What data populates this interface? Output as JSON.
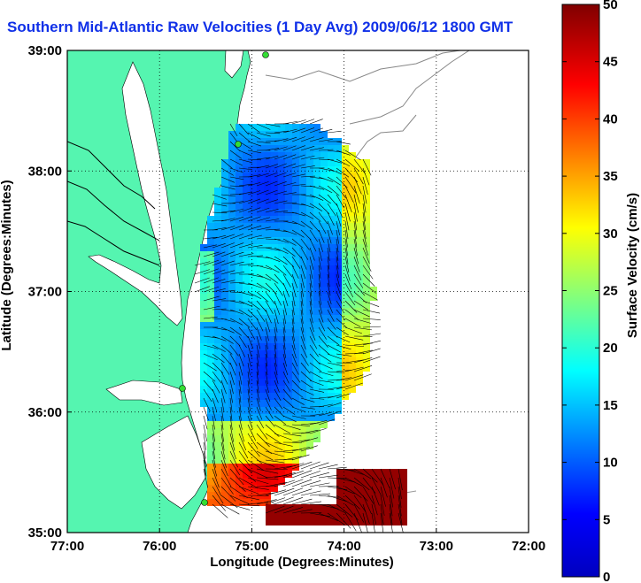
{
  "title": "Southern Mid-Atlantic Raw Velocities (1 Day Avg) 2009/06/12 1800 GMT",
  "chart_data": {
    "type": "heatmap",
    "title": "Southern Mid-Atlantic Raw Velocities (1 Day Avg) 2009/06/12 1800 GMT",
    "xlabel": "Longitude (Degrees:Minutes)",
    "ylabel": "Latitude (Degrees:Minutes)",
    "xlim": [
      -77,
      -72
    ],
    "ylim": [
      35,
      39
    ],
    "x_ticks": [
      {
        "value": -77,
        "label": "77:00"
      },
      {
        "value": -76,
        "label": "76:00"
      },
      {
        "value": -75,
        "label": "75:00"
      },
      {
        "value": -74,
        "label": "74:00"
      },
      {
        "value": -73,
        "label": "73:00"
      },
      {
        "value": -72,
        "label": "72:00"
      }
    ],
    "y_ticks": [
      {
        "value": 35,
        "label": "35:00"
      },
      {
        "value": 36,
        "label": "36:00"
      },
      {
        "value": 37,
        "label": "37:00"
      },
      {
        "value": 38,
        "label": "38:00"
      },
      {
        "value": 39,
        "label": "39:00"
      }
    ],
    "grid": true,
    "colorbar": {
      "label": "Surface Velocity (cm/s)",
      "range": [
        0,
        50
      ],
      "ticks": [
        0,
        5,
        10,
        15,
        20,
        25,
        30,
        35,
        40,
        45,
        50
      ],
      "colormap": "jet",
      "placement": "right"
    },
    "land_color": "#55f5b0",
    "water_color": "#ffffff"
  }
}
